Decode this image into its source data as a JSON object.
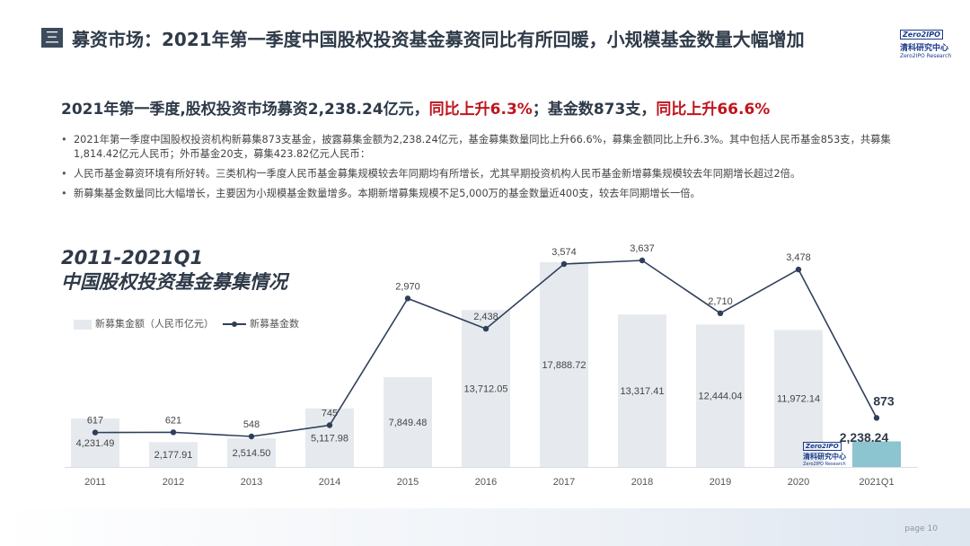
{
  "header": {
    "section_icon": "menu-icon",
    "section_icon_glyph": "三",
    "title": "募资市场：2021年第一季度中国股权投资基金募资同比有所回暖，小规模基金数量大幅增加",
    "logo_badge": "Zero2IPO",
    "logo_cn": "清科研究中心",
    "logo_en": "Zero2IPO Research"
  },
  "headline": {
    "part1": "2021年第一季度,股权投资市场募资2,238.24亿元，",
    "part2_red": "同比上升6.3%",
    "part3": "；基金数873支，",
    "part4_red": "同比上升66.6%"
  },
  "bullets": [
    "2021年第一季度中国股权投资机构新募集873支基金，披露募集金额为2,238.24亿元，基金募集数量同比上升66.6%，募集金额同比上升6.3%。其中包括人民币基金853支，共募集1,814.42亿元人民币；外币基金20支，募集423.82亿元人民币：",
    "人民币基金募资环境有所好转。三类机构一季度人民币基金募集规模较去年同期均有所增长，尤其早期投资机构人民币基金新增募集规模较去年同期增长超过2倍。",
    "新募集基金数量同比大幅增长，主要因为小规模基金数量增多。本期新增募集规模不足5,000万的基金数量近400支，较去年同期增长一倍。"
  ],
  "chart_title": {
    "line1": "2011-2021Q1",
    "line2": "中国股权投资基金募集情况"
  },
  "legend": {
    "bar_label": "新募集金额（人民币亿元）",
    "line_label": "新募基金数"
  },
  "watermark": {
    "badge": "Zero2IPO",
    "cn": "清科研究中心",
    "en": "Zero2IPO Research"
  },
  "footer": {
    "page_label": "page  10"
  },
  "chart_data": {
    "type": "bar",
    "categories": [
      "2011",
      "2012",
      "2013",
      "2014",
      "2015",
      "2016",
      "2017",
      "2018",
      "2019",
      "2020",
      "2021Q1"
    ],
    "series": [
      {
        "name": "新募集金额（人民币亿元）",
        "type": "bar",
        "values": [
          4231.49,
          2177.91,
          2514.5,
          5117.98,
          7849.48,
          13712.05,
          17888.72,
          13317.41,
          12444.04,
          11972.14,
          2238.24
        ],
        "labels": [
          "4,231.49",
          "2,177.91",
          "2,514.50",
          "5,117.98",
          "7,849.48",
          "13,712.05",
          "17,888.72",
          "13,317.41",
          "12,444.04",
          "11,972.14",
          "2,238.24"
        ]
      },
      {
        "name": "新募基金数",
        "type": "line",
        "values": [
          617,
          621,
          548,
          745,
          2970,
          2438,
          3574,
          3637,
          2710,
          3478,
          873
        ],
        "labels": [
          "617",
          "621",
          "548",
          "745",
          "2,970",
          "2,438",
          "3,574",
          "3,637",
          "2,710",
          "3,478",
          "873"
        ]
      }
    ],
    "colors": {
      "bar": "#e6eaef",
      "bar_highlight": "#8cc4d0",
      "line": "#2f3f5a"
    },
    "legend_position": "top-left",
    "grid": false
  }
}
